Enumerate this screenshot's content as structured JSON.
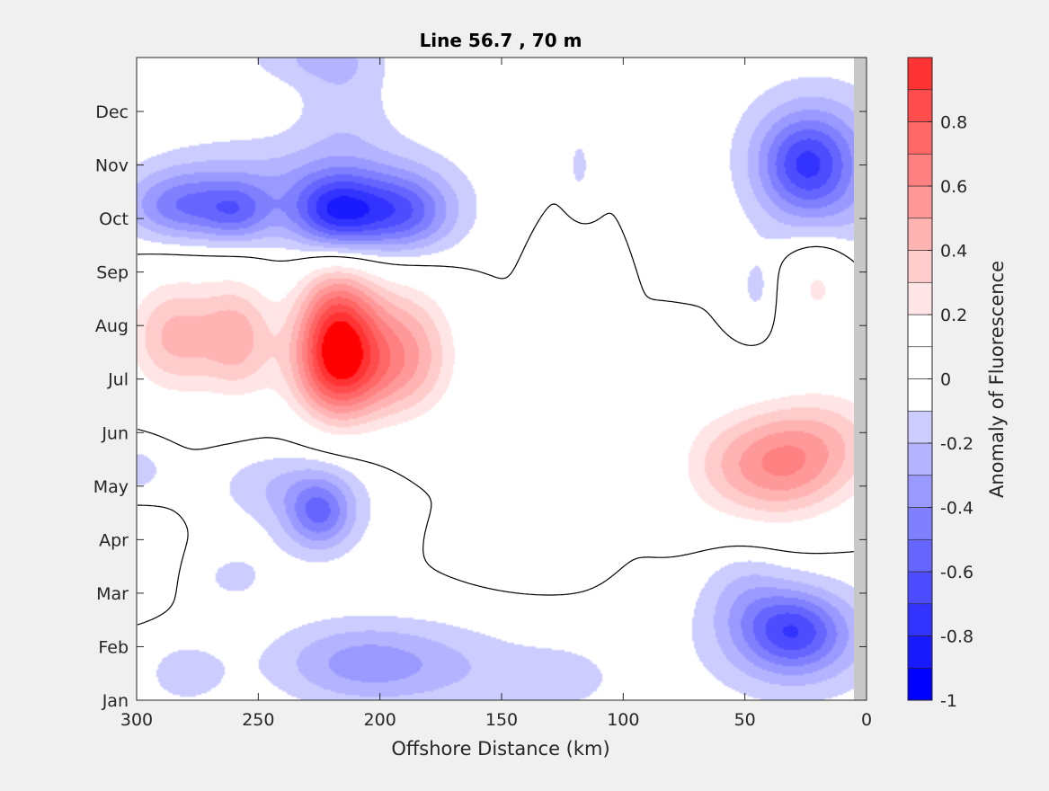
{
  "chart_data": {
    "type": "heatmap",
    "title": "Line 56.7 , 70 m",
    "xlabel": "Offshore Distance (km)",
    "ylabel": "",
    "colorbar_label": "Anomaly of Fluorescence",
    "x_ticks": [
      300,
      250,
      200,
      150,
      100,
      50,
      0
    ],
    "xlim": [
      300,
      0
    ],
    "x_reversed": true,
    "y_ticks": [
      "Jan",
      "Feb",
      "Mar",
      "Apr",
      "May",
      "Jun",
      "Jul",
      "Aug",
      "Sep",
      "Oct",
      "Nov",
      "Dec"
    ],
    "colorbar_ticks": [
      0.8,
      0.6,
      0.4,
      0.2,
      0,
      -0.2,
      -0.4,
      -0.6,
      -0.8,
      -1
    ],
    "colorbar_range": [
      -1,
      1
    ],
    "contour_interval": 0.1,
    "zero_contour": true,
    "grid": false,
    "colormap": {
      "levels": [
        -1.0,
        -0.9,
        -0.8,
        -0.7,
        -0.6,
        -0.5,
        -0.4,
        -0.3,
        -0.2,
        -0.1,
        0.0,
        0.1,
        0.2,
        0.3,
        0.4,
        0.5,
        0.6,
        0.7,
        0.8,
        0.9,
        1.0
      ],
      "colors": [
        "#0000ff",
        "#1a1aff",
        "#3333ff",
        "#4d4dff",
        "#6666ff",
        "#8080ff",
        "#9999ff",
        "#b3b3ff",
        "#ccccff",
        "#e5e5ff",
        "#ffffff",
        "#ffffff",
        "#ffe5e5",
        "#ffcccc",
        "#ffb3b3",
        "#ff9999",
        "#ff8080",
        "#ff6666",
        "#ff4d4d",
        "#ff3333",
        "#ff1a1a",
        "#ff0000"
      ]
    },
    "anomaly_features": [
      {
        "x": 218,
        "month": 6.7,
        "value": 0.97,
        "sx": 12,
        "sy": 0.95
      },
      {
        "x": 190,
        "month": 6.6,
        "value": 0.45,
        "sx": 15,
        "sy": 0.9
      },
      {
        "x": 285,
        "month": 6.8,
        "value": 0.42,
        "sx": 14,
        "sy": 0.8
      },
      {
        "x": 258,
        "month": 6.8,
        "value": 0.4,
        "sx": 11,
        "sy": 0.8
      },
      {
        "x": 210,
        "month": 6.0,
        "value": 0.2,
        "sx": 22,
        "sy": 0.6
      },
      {
        "x": 38,
        "month": 4.4,
        "value": 0.52,
        "sx": 18,
        "sy": 0.75
      },
      {
        "x": 12,
        "month": 4.8,
        "value": 0.28,
        "sx": 18,
        "sy": 0.8
      },
      {
        "x": 65,
        "month": 4.4,
        "value": 0.15,
        "sx": 14,
        "sy": 0.8
      },
      {
        "x": 20,
        "month": 7.8,
        "value": 0.23,
        "sx": 10,
        "sy": 0.7
      },
      {
        "x": 125,
        "month": 7.3,
        "value": 0.15,
        "sx": 8,
        "sy": 0.8
      },
      {
        "x": 140,
        "month": 3.0,
        "value": 0.16,
        "sx": 15,
        "sy": 0.4
      },
      {
        "x": 300,
        "month": 2.7,
        "value": 0.16,
        "sx": 9,
        "sy": 0.55
      },
      {
        "x": 218,
        "month": 9.1,
        "value": -0.6,
        "sx": 13,
        "sy": 0.5
      },
      {
        "x": 190,
        "month": 9.1,
        "value": -0.42,
        "sx": 14,
        "sy": 0.5
      },
      {
        "x": 282,
        "month": 9.2,
        "value": -0.4,
        "sx": 16,
        "sy": 0.45
      },
      {
        "x": 258,
        "month": 9.1,
        "value": -0.32,
        "sx": 10,
        "sy": 0.4
      },
      {
        "x": 205,
        "month": 9.4,
        "value": -0.22,
        "sx": 28,
        "sy": 0.8
      },
      {
        "x": 260,
        "month": 9.7,
        "value": -0.18,
        "sx": 28,
        "sy": 0.6
      },
      {
        "x": 215,
        "month": 11.3,
        "value": -0.15,
        "sx": 14,
        "sy": 0.9
      },
      {
        "x": 25,
        "month": 10.0,
        "value": -0.45,
        "sx": 13,
        "sy": 0.6
      },
      {
        "x": 20,
        "month": 10.3,
        "value": -0.28,
        "sx": 22,
        "sy": 0.9
      },
      {
        "x": 15,
        "month": 9.0,
        "value": -0.14,
        "sx": 20,
        "sy": 0.6
      },
      {
        "x": 45,
        "month": 7.7,
        "value": -0.12,
        "sx": 6,
        "sy": 0.5
      },
      {
        "x": 118,
        "month": 10.0,
        "value": -0.12,
        "sx": 4,
        "sy": 0.5
      },
      {
        "x": 30,
        "month": 1.3,
        "value": -0.45,
        "sx": 14,
        "sy": 0.5
      },
      {
        "x": 30,
        "month": 1.1,
        "value": -0.25,
        "sx": 28,
        "sy": 0.8
      },
      {
        "x": 210,
        "month": 0.7,
        "value": -0.3,
        "sx": 25,
        "sy": 0.55
      },
      {
        "x": 225,
        "month": 3.5,
        "value": -0.35,
        "sx": 9,
        "sy": 0.45
      },
      {
        "x": 225,
        "month": 3.7,
        "value": -0.2,
        "sx": 16,
        "sy": 0.7
      },
      {
        "x": 170,
        "month": 0.6,
        "value": -0.15,
        "sx": 28,
        "sy": 0.6
      },
      {
        "x": 125,
        "month": 0.4,
        "value": -0.15,
        "sx": 15,
        "sy": 0.4
      },
      {
        "x": 280,
        "month": 0.5,
        "value": -0.14,
        "sx": 14,
        "sy": 0.5
      },
      {
        "x": 250,
        "month": 4.0,
        "value": -0.12,
        "sx": 15,
        "sy": 0.45
      },
      {
        "x": 300,
        "month": 4.3,
        "value": -0.14,
        "sx": 10,
        "sy": 0.4
      },
      {
        "x": 260,
        "month": 2.3,
        "value": -0.12,
        "sx": 12,
        "sy": 0.4
      },
      {
        "x": 50,
        "month": 2.0,
        "value": -0.15,
        "sx": 12,
        "sy": 0.6
      },
      {
        "x": 230,
        "month": 12.0,
        "value": -0.16,
        "sx": 20,
        "sy": 0.35
      }
    ]
  }
}
